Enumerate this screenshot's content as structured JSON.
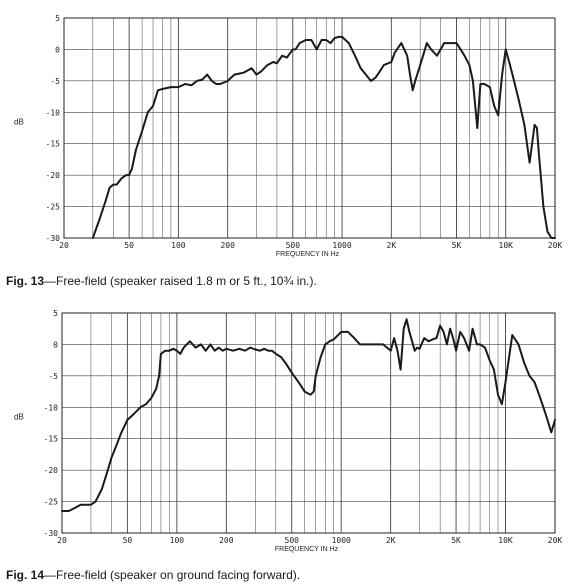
{
  "figures": [
    {
      "caption_fig": "Fig. 13",
      "caption_text": "—Free-field (speaker raised 1.8 m or 5 ft., 10¾ in.)."
    },
    {
      "caption_fig": "Fig. 14",
      "caption_text": "—Free-field (speaker on ground facing forward)."
    }
  ],
  "chart_data": [
    {
      "type": "line",
      "title": "",
      "xlabel": "FREQUENCY IN Hz",
      "ylabel": "dB",
      "xscale": "log",
      "xlim": [
        20,
        20000
      ],
      "ylim": [
        -30,
        5
      ],
      "grid": true,
      "line_color": "#1a1a1a",
      "x_ticks": [
        20,
        50,
        100,
        200,
        500,
        1000,
        2000,
        5000,
        10000,
        20000
      ],
      "x_tick_labels": [
        "20",
        "50",
        "100",
        "200",
        "500",
        "1000",
        "2K",
        "5K",
        "10K",
        "20K"
      ],
      "y_ticks": [
        5,
        0,
        -5,
        -10,
        -15,
        -20,
        -25,
        -30
      ],
      "y_tick_labels": [
        "5",
        "0",
        "-5",
        "-10",
        "-15",
        "-20",
        "-25",
        "-30"
      ],
      "series": [
        {
          "x": [
            30,
            33,
            36,
            38,
            40,
            42,
            45,
            48,
            50,
            52,
            55,
            60,
            65,
            70,
            72,
            75,
            80,
            90,
            100,
            110,
            120,
            130,
            140,
            150,
            160,
            170,
            180,
            200,
            220,
            250,
            280,
            300,
            320,
            350,
            380,
            400,
            430,
            460,
            500,
            520,
            550,
            600,
            650,
            700,
            750,
            800,
            850,
            900,
            950,
            1000,
            1100,
            1200,
            1300,
            1500,
            1600,
            1700,
            1800,
            2000,
            2100,
            2300,
            2500,
            2600,
            2700,
            2800,
            3000,
            3300,
            3500,
            3800,
            4000,
            4200,
            4500,
            5000,
            5300,
            5600,
            6000,
            6300,
            6700,
            7000,
            7400,
            8000,
            8500,
            9000,
            9500,
            10000,
            10500,
            11000,
            12000,
            13000,
            14000,
            14500,
            15000,
            15500,
            16000,
            17000,
            18000,
            19000,
            20000
          ],
          "y": [
            -30,
            -27,
            -24,
            -22,
            -21.5,
            -21.5,
            -20.5,
            -20,
            -20,
            -19,
            -16,
            -13,
            -10,
            -9,
            -8,
            -6.5,
            -6.3,
            -6,
            -6,
            -5.5,
            -5.7,
            -5,
            -4.8,
            -4,
            -5,
            -5.5,
            -5.5,
            -5,
            -4,
            -3.7,
            -3,
            -4,
            -3.5,
            -2.5,
            -2,
            -2.2,
            -1,
            -1.3,
            0,
            0,
            1,
            1.5,
            1.5,
            0,
            1.5,
            1.5,
            1,
            1.8,
            2,
            2,
            1,
            -1,
            -3,
            -5,
            -4.5,
            -3.5,
            -2.5,
            -2,
            -0.5,
            1,
            -1,
            -4,
            -6.5,
            -5,
            -2.5,
            1,
            0,
            -1,
            0,
            1,
            1,
            1,
            0,
            -1,
            -2.5,
            -5,
            -12.5,
            -5.5,
            -5.5,
            -6,
            -9,
            -10.5,
            -4,
            0,
            -2,
            -4,
            -8,
            -12,
            -18,
            -15,
            -12,
            -12.5,
            -17,
            -25,
            -29,
            -30,
            -30
          ]
        }
      ]
    },
    {
      "type": "line",
      "title": "",
      "xlabel": "FREQUENCY IN Hz",
      "ylabel": "dB",
      "xscale": "log",
      "xlim": [
        20,
        20000
      ],
      "ylim": [
        -30,
        5
      ],
      "grid": true,
      "line_color": "#1a1a1a",
      "x_ticks": [
        20,
        50,
        100,
        200,
        500,
        1000,
        2000,
        5000,
        10000,
        20000
      ],
      "x_tick_labels": [
        "20",
        "50",
        "100",
        "200",
        "500",
        "1000",
        "2K",
        "5K",
        "10K",
        "20K"
      ],
      "y_ticks": [
        5,
        0,
        -5,
        -10,
        -15,
        -20,
        -25,
        -30
      ],
      "y_tick_labels": [
        "5",
        "0",
        "-5",
        "-10",
        "-15",
        "-20",
        "-25",
        "-30"
      ],
      "series": [
        {
          "x": [
            20,
            22,
            24,
            26,
            28,
            30,
            32,
            35,
            38,
            40,
            43,
            46,
            50,
            55,
            60,
            65,
            70,
            75,
            78,
            80,
            85,
            90,
            95,
            100,
            105,
            110,
            120,
            130,
            140,
            150,
            160,
            170,
            180,
            190,
            200,
            220,
            240,
            260,
            280,
            300,
            320,
            340,
            360,
            380,
            400,
            430,
            460,
            500,
            550,
            600,
            650,
            680,
            700,
            750,
            800,
            850,
            900,
            1000,
            1100,
            1200,
            1300,
            1400,
            1500,
            1600,
            1800,
            2000,
            2100,
            2200,
            2300,
            2400,
            2500,
            2600,
            2700,
            2800,
            2900,
            3000,
            3200,
            3400,
            3600,
            3800,
            4000,
            4200,
            4400,
            4600,
            4800,
            5000,
            5300,
            5600,
            6000,
            6300,
            6700,
            7000,
            7500,
            8000,
            8500,
            9000,
            9500,
            10000,
            11000,
            12000,
            13000,
            14000,
            15000,
            16000,
            17000,
            18000,
            19000,
            20000
          ],
          "y": [
            -26.5,
            -26.5,
            -26,
            -25.5,
            -25.5,
            -25.5,
            -25,
            -23,
            -20,
            -18,
            -16,
            -14,
            -12,
            -11,
            -10,
            -9.5,
            -8.5,
            -7,
            -5,
            -1.5,
            -1,
            -1,
            -0.7,
            -1,
            -1.5,
            -0.5,
            0.5,
            -0.5,
            0,
            -1,
            0,
            -1,
            -0.5,
            -1,
            -0.7,
            -1,
            -0.7,
            -1,
            -0.5,
            -0.8,
            -1,
            -0.7,
            -1,
            -1,
            -1.5,
            -2,
            -3,
            -4.5,
            -6,
            -7.5,
            -8,
            -7.5,
            -5,
            -2,
            0,
            0.5,
            0.8,
            2,
            2,
            1,
            0,
            0,
            0,
            0,
            0,
            -1,
            1,
            -1,
            -4,
            2.5,
            4,
            2,
            0.5,
            -1,
            -0.5,
            -0.7,
            1,
            0.5,
            0.8,
            1,
            3,
            2,
            0,
            2.5,
            1,
            -1,
            2,
            1,
            -1,
            2.5,
            0,
            0,
            -0.5,
            -2.5,
            -4,
            -8,
            -9.5,
            -6,
            1.5,
            0,
            -3,
            -5,
            -6,
            -8,
            -10,
            -12,
            -14,
            -12
          ]
        }
      ]
    }
  ]
}
